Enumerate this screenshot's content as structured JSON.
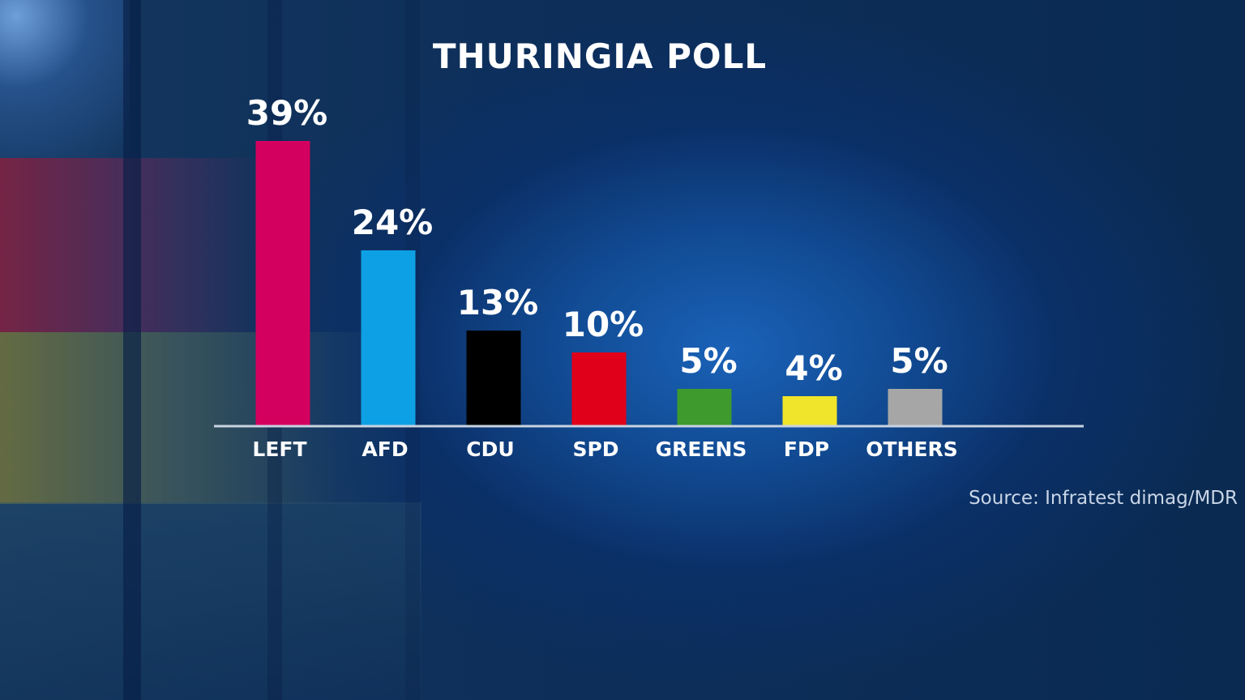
{
  "chart_data": {
    "type": "bar",
    "title": "THURINGIA POLL",
    "categories": [
      "LEFT",
      "AFD",
      "CDU",
      "SPD",
      "GREENS",
      "FDP",
      "OTHERS"
    ],
    "values": [
      39,
      24,
      13,
      10,
      5,
      4,
      5
    ],
    "value_labels": [
      "39%",
      "24%",
      "13%",
      "10%",
      "5%",
      "4%",
      "5%"
    ],
    "colors": [
      "#d4005f",
      "#0ea0e4",
      "#000000",
      "#e0001a",
      "#3e9a2c",
      "#f0e52a",
      "#a6a6a6"
    ],
    "unit": "%",
    "ylim": [
      0,
      39
    ],
    "grid": false,
    "legend": "none",
    "xlabel": "",
    "ylabel": ""
  },
  "source": "Source: Infratest dimag/MDR"
}
